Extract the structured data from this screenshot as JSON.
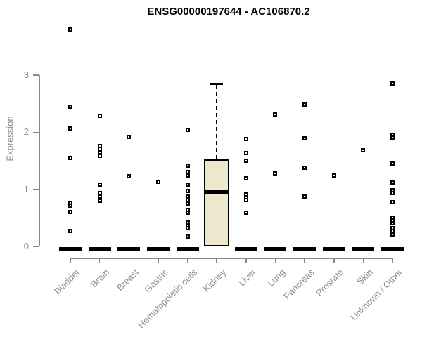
{
  "title": "ENSG00000197644 - AC106870.2",
  "chart_data": {
    "type": "boxplot",
    "title": "ENSG00000197644 - AC106870.2",
    "xlabel": "",
    "ylabel": "Expression",
    "yticks": [
      0,
      1,
      2,
      3
    ],
    "ylim": [
      0,
      3.9
    ],
    "grid": false,
    "categories": [
      "Bladder",
      "Brain",
      "Breast",
      "Gastric",
      "Hematopoietic cells",
      "Kidney",
      "Liver",
      "Lung",
      "Pancreas",
      "Prostate",
      "Skin",
      "Unknown / Other"
    ],
    "boxes": [
      {
        "category": "Bladder",
        "q1": 0,
        "median": 0,
        "q3": 0,
        "whisker_low": 0,
        "whisker_high": 0,
        "outliers": [
          3.8,
          2.45,
          2.07,
          1.55,
          0.76,
          0.71,
          0.6,
          0.27
        ]
      },
      {
        "category": "Brain",
        "q1": 0,
        "median": 0,
        "q3": 0,
        "whisker_low": 0,
        "whisker_high": 0,
        "outliers": [
          2.29,
          1.76,
          1.71,
          1.65,
          1.59,
          1.08,
          0.93,
          0.87,
          0.8
        ]
      },
      {
        "category": "Breast",
        "q1": 0,
        "median": 0,
        "q3": 0,
        "whisker_low": 0,
        "whisker_high": 0,
        "outliers": [
          1.92,
          1.23
        ]
      },
      {
        "category": "Gastric",
        "q1": 0,
        "median": 0,
        "q3": 0,
        "whisker_low": 0,
        "whisker_high": 0,
        "outliers": [
          1.13
        ]
      },
      {
        "category": "Hematopoietic cells",
        "q1": 0,
        "median": 0,
        "q3": 0,
        "whisker_low": 0,
        "whisker_high": 0,
        "outliers": [
          2.04,
          1.41,
          1.3,
          1.24,
          1.08,
          0.97,
          0.87,
          0.81,
          0.75,
          0.64,
          0.59,
          0.42,
          0.37,
          0.32,
          0.17
        ]
      },
      {
        "category": "Kidney",
        "q1": 0,
        "median": 0.95,
        "q3": 1.53,
        "whisker_low": 0,
        "whisker_high": 2.85,
        "outliers": []
      },
      {
        "category": "Liver",
        "q1": 0,
        "median": 0,
        "q3": 0,
        "whisker_low": 0,
        "whisker_high": 0,
        "outliers": [
          1.88,
          1.64,
          1.5,
          1.19,
          0.91,
          0.86,
          0.81,
          0.59
        ]
      },
      {
        "category": "Lung",
        "q1": 0,
        "median": 0,
        "q3": 0,
        "whisker_low": 0,
        "whisker_high": 0,
        "outliers": [
          2.31,
          1.28
        ]
      },
      {
        "category": "Pancreas",
        "q1": 0,
        "median": 0,
        "q3": 0,
        "whisker_low": 0,
        "whisker_high": 0,
        "outliers": [
          2.48,
          1.9,
          1.38,
          0.87
        ]
      },
      {
        "category": "Prostate",
        "q1": 0,
        "median": 0,
        "q3": 0,
        "whisker_low": 0,
        "whisker_high": 0,
        "outliers": [
          1.24
        ]
      },
      {
        "category": "Skin",
        "q1": 0,
        "median": 0,
        "q3": 0,
        "whisker_low": 0,
        "whisker_high": 0,
        "outliers": [
          1.68
        ]
      },
      {
        "category": "Unknown / Other",
        "q1": 0,
        "median": 0,
        "q3": 0,
        "whisker_low": 0,
        "whisker_high": 0,
        "outliers": [
          2.85,
          1.96,
          1.91,
          1.45,
          1.12,
          0.98,
          0.94,
          0.77,
          0.5,
          0.45,
          0.4,
          0.32,
          0.27,
          0.21
        ]
      }
    ],
    "colors": {
      "box_fill": "#EDE8CD",
      "box_border": "#000000",
      "median": "#000000",
      "collapsed_bar": "#000000",
      "outlier": "#000000",
      "axis": "#888888",
      "tick_label": "#8a8f98",
      "title": "#000000"
    },
    "legend": null
  }
}
